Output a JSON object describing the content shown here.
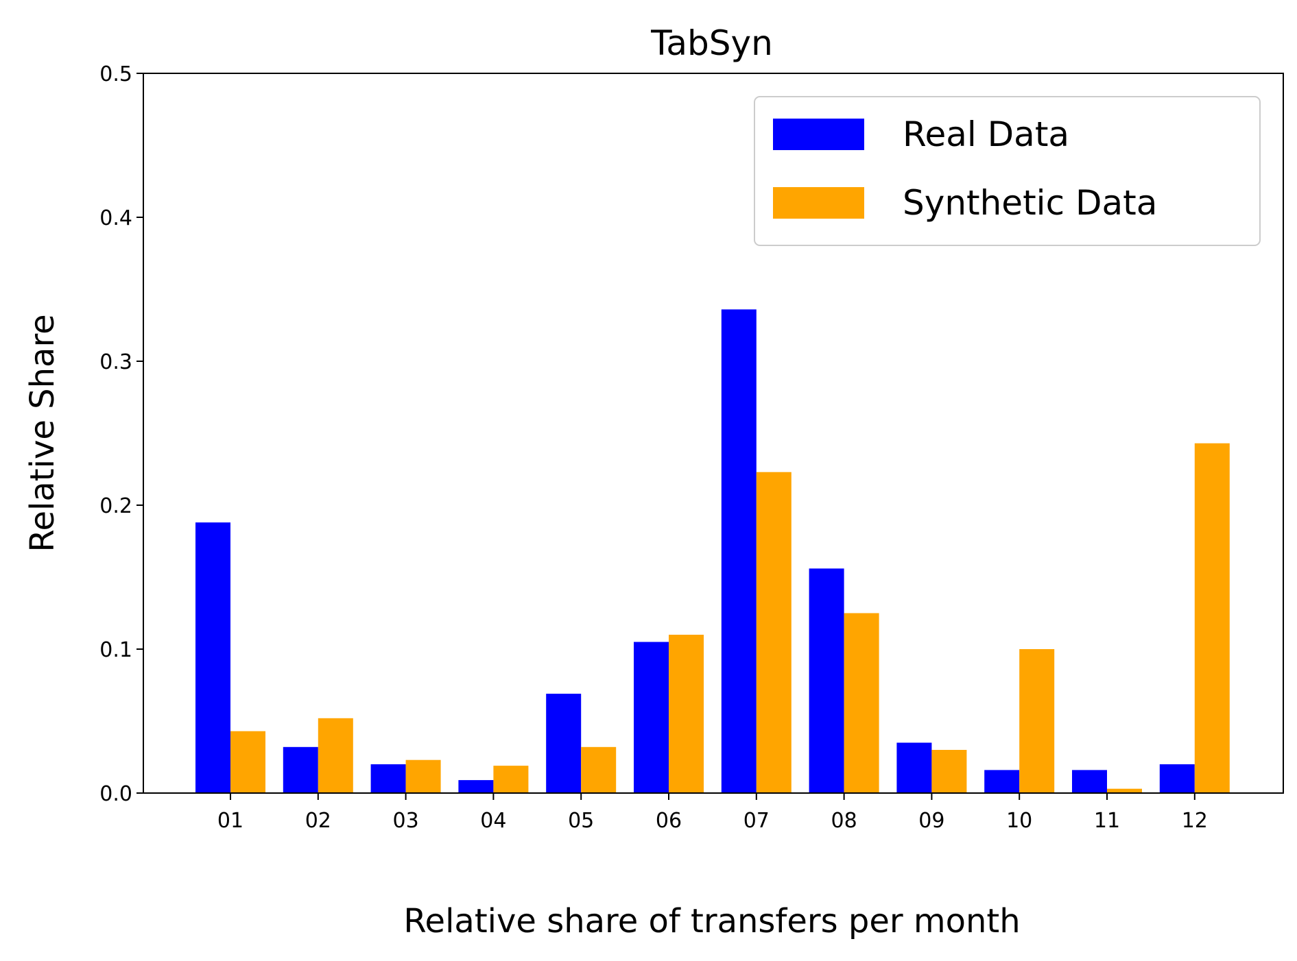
{
  "chart_data": {
    "type": "bar",
    "title": "TabSyn",
    "xlabel": "Relative share of transfers per month",
    "ylabel": "Relative Share",
    "categories": [
      "01",
      "02",
      "03",
      "04",
      "05",
      "06",
      "07",
      "08",
      "09",
      "10",
      "11",
      "12"
    ],
    "ylim": [
      0,
      0.5
    ],
    "yticks": [
      "0.0",
      "0.1",
      "0.2",
      "0.3",
      "0.4",
      "0.5"
    ],
    "grid": false,
    "legend_position": "top-right",
    "series": [
      {
        "name": "Real Data",
        "color": "#0000ff",
        "values": [
          0.188,
          0.032,
          0.02,
          0.009,
          0.069,
          0.105,
          0.336,
          0.156,
          0.035,
          0.016,
          0.016,
          0.02
        ]
      },
      {
        "name": "Synthetic Data",
        "color": "#ffa500",
        "values": [
          0.043,
          0.052,
          0.023,
          0.019,
          0.032,
          0.11,
          0.223,
          0.125,
          0.03,
          0.1,
          0.003,
          0.243
        ]
      }
    ]
  }
}
